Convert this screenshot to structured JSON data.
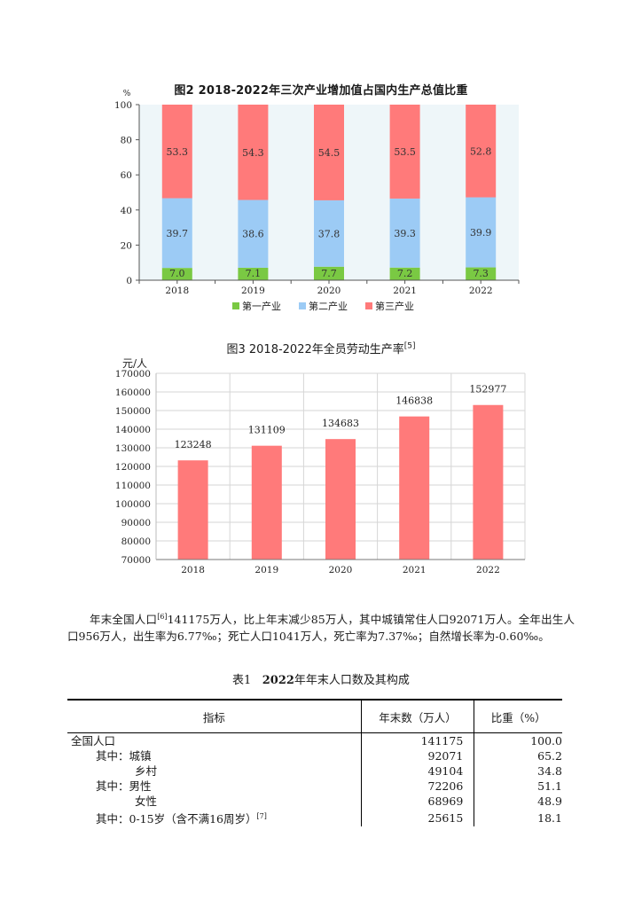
{
  "figure2": {
    "title": "图2  2018-2022年三次产业增加值占国内生产总值比重",
    "chart_data": {
      "type": "bar",
      "stacked": true,
      "title": "图2  2018-2022年三次产业增加值占国内生产总值比重",
      "ylabel": "%",
      "ylim": [
        0,
        100
      ],
      "yticks": [
        "0",
        "20",
        "40",
        "60",
        "80",
        "100"
      ],
      "categories": [
        "2018",
        "2019",
        "2020",
        "2021",
        "2022"
      ],
      "series": [
        {
          "name": "第一产业",
          "color": "#7ac943",
          "values": [
            7.0,
            7.1,
            7.7,
            7.2,
            7.3
          ],
          "labels": [
            "7.0",
            "7.1",
            "7.7",
            "7.2",
            "7.3"
          ]
        },
        {
          "name": "第二产业",
          "color": "#9ccbf5",
          "values": [
            39.7,
            38.6,
            37.8,
            39.3,
            39.9
          ],
          "labels": [
            "39.7",
            "38.6",
            "37.8",
            "39.3",
            "39.9"
          ]
        },
        {
          "name": "第三产业",
          "color": "#ff7a7a",
          "values": [
            53.3,
            54.3,
            54.5,
            53.5,
            52.8
          ],
          "labels": [
            "53.3",
            "54.3",
            "54.5",
            "53.5",
            "52.8"
          ]
        }
      ],
      "legend": "bottom"
    }
  },
  "figure3": {
    "title": "图3   2018-2022年全员劳动生产率",
    "note": "[5]",
    "chart_data": {
      "type": "bar",
      "title": "图3   2018-2022年全员劳动生产率",
      "ylabel": "元/人",
      "ylim": [
        70000,
        170000
      ],
      "yticks": [
        "70000",
        "80000",
        "90000",
        "100000",
        "110000",
        "120000",
        "130000",
        "140000",
        "150000",
        "160000",
        "170000"
      ],
      "categories": [
        "2018",
        "2019",
        "2020",
        "2021",
        "2022"
      ],
      "values": [
        123248,
        131109,
        134683,
        146838,
        152977
      ],
      "labels": [
        "123248",
        "131109",
        "134683",
        "146838",
        "152977"
      ],
      "color": "#ff7a7a"
    }
  },
  "paragraph": {
    "p1": "年末全国人口",
    "note1": "[6]",
    "p2": "141175万人，比上年末减少85万人，其中城镇常住人口92071万人。全年出生人口956万人，出生率为6.77‰；死亡人口1041万人，死亡率为7.37‰；自然增长率为-0.60‰。"
  },
  "table1": {
    "caption_prefix": "表1",
    "caption_bold": "2022",
    "caption_rest": "年年末人口数及其构成",
    "headers": [
      "指标",
      "年末数（万人）",
      "比重（%）"
    ],
    "rows": [
      {
        "label": "全国人口",
        "value": "141175",
        "share": "100.0"
      },
      {
        "label": "其中：城镇",
        "value": "92071",
        "share": "65.2"
      },
      {
        "label": "乡村",
        "value": "49104",
        "share": "34.8"
      },
      {
        "label": "其中：男性",
        "value": "72206",
        "share": "51.1"
      },
      {
        "label": "女性",
        "value": "68969",
        "share": "48.9"
      },
      {
        "label": "其中：0-15岁（含不满16周岁）",
        "note": "[7]",
        "value": "25615",
        "share": "18.1"
      }
    ]
  }
}
